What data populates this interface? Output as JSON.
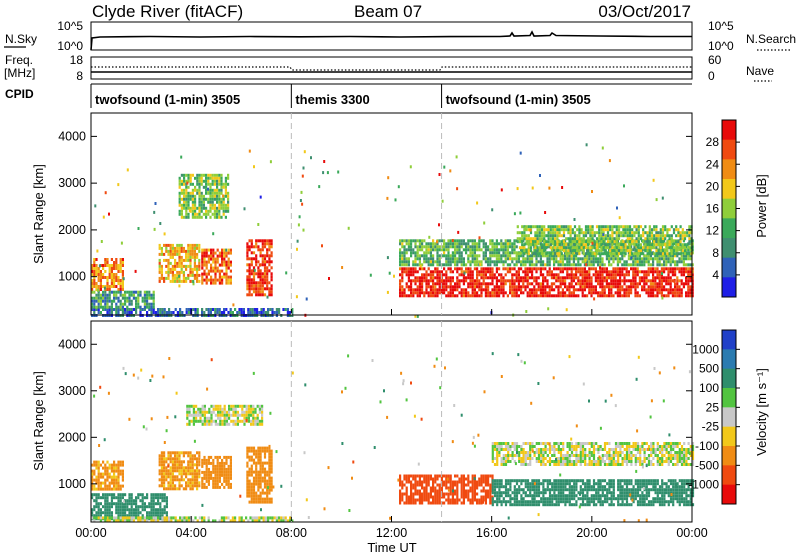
{
  "header": {
    "station": "Clyde River (fitACF)",
    "beam": "Beam 07",
    "date": "03/Oct/2017"
  },
  "top_panels": {
    "noise_left_label": "N.Sky",
    "noise_right_label": "N.Search",
    "noise_ticks_left": [
      "10^5",
      "10^0"
    ],
    "noise_ticks_right": [
      "10^5",
      "10^0"
    ],
    "freq_left_label": "Freq.",
    "freq_unit": "[MHz]",
    "freq_ticks": [
      "18",
      "8"
    ],
    "nave_ticks": [
      "60",
      "0"
    ],
    "nave_label": "Nave",
    "cpid_label": "CPID",
    "schedule": [
      {
        "name": "twofsound (1-min) 3505",
        "start_h": 0,
        "end_h": 8
      },
      {
        "name": "themis 3300",
        "start_h": 8,
        "end_h": 14
      },
      {
        "name": "twofsound (1-min) 3505",
        "start_h": 14,
        "end_h": 24
      }
    ]
  },
  "colors": {
    "power_scale": [
      "#1f1fe6",
      "#2f62b8",
      "#3f8f70",
      "#3aa95a",
      "#8fce3a",
      "#f2c81a",
      "#f08c14",
      "#f04a10",
      "#e80a0a"
    ],
    "velocity_scale": [
      "#2040c8",
      "#2b7bb0",
      "#2f8e6c",
      "#52c440",
      "#c8c8c8",
      "#f2c81a",
      "#f08c14",
      "#f04a10",
      "#e80a0a"
    ],
    "noise_line": "#000000",
    "dashed_divider": "#bbbbbb"
  },
  "chart_data": [
    {
      "type": "heatmap",
      "name": "power",
      "title": "",
      "xlabel": "Time UT",
      "ylabel": "Slant Range [km]",
      "xlim": [
        0,
        24
      ],
      "ylim": [
        180,
        4500
      ],
      "x_ticks": [
        "00:00",
        "04:00",
        "08:00",
        "12:00",
        "16:00",
        "20:00",
        "00:00"
      ],
      "y_ticks": [
        1000,
        2000,
        3000,
        4000
      ],
      "colorbar": {
        "label": "Power [dB]",
        "ticks": [
          4,
          8,
          12,
          16,
          20,
          24,
          28
        ],
        "range": [
          0,
          30
        ]
      },
      "regions": [
        {
          "t": [
            0.0,
            8.0
          ],
          "range_km": [
            180,
            330
          ],
          "value": 6
        },
        {
          "t": [
            0.0,
            1.3
          ],
          "range_km": [
            700,
            1400
          ],
          "value": 22
        },
        {
          "t": [
            0.0,
            2.5
          ],
          "range_km": [
            350,
            700
          ],
          "value": 10
        },
        {
          "t": [
            2.7,
            4.3
          ],
          "range_km": [
            900,
            1700
          ],
          "value": 20
        },
        {
          "t": [
            4.4,
            5.6
          ],
          "range_km": [
            850,
            1600
          ],
          "value": 24
        },
        {
          "t": [
            6.2,
            7.2
          ],
          "range_km": [
            600,
            1800
          ],
          "value": 26
        },
        {
          "t": [
            3.5,
            5.5
          ],
          "range_km": [
            2300,
            3200
          ],
          "value": 14
        },
        {
          "t": [
            12.3,
            24.0
          ],
          "range_km": [
            580,
            1200
          ],
          "value": 28
        },
        {
          "t": [
            12.3,
            24.0
          ],
          "range_km": [
            1250,
            1800
          ],
          "value": 12
        },
        {
          "t": [
            17.0,
            24.0
          ],
          "range_km": [
            1500,
            2100
          ],
          "value": 14
        }
      ]
    },
    {
      "type": "heatmap",
      "name": "velocity",
      "title": "",
      "xlabel": "Time UT",
      "ylabel": "Slant Range [km]",
      "xlim": [
        0,
        24
      ],
      "ylim": [
        180,
        4500
      ],
      "x_ticks": [
        "00:00",
        "04:00",
        "08:00",
        "12:00",
        "16:00",
        "20:00",
        "00:00"
      ],
      "y_ticks": [
        1000,
        2000,
        3000,
        4000
      ],
      "colorbar": {
        "label": "Velocity [m s⁻¹]",
        "ticks": [
          1000,
          500,
          100,
          25,
          -25,
          -100,
          -500,
          -1000
        ]
      },
      "regions": [
        {
          "t": [
            0.0,
            3.0
          ],
          "range_km": [
            250,
            800
          ],
          "value": 300
        },
        {
          "t": [
            0.0,
            1.3
          ],
          "range_km": [
            900,
            1500
          ],
          "value": -150
        },
        {
          "t": [
            2.7,
            4.3
          ],
          "range_km": [
            900,
            1700
          ],
          "value": -150
        },
        {
          "t": [
            4.4,
            5.6
          ],
          "range_km": [
            900,
            1600
          ],
          "value": -300
        },
        {
          "t": [
            6.2,
            7.2
          ],
          "range_km": [
            600,
            1800
          ],
          "value": -300
        },
        {
          "t": [
            3.8,
            6.8
          ],
          "range_km": [
            2300,
            2700
          ],
          "value": 0
        },
        {
          "t": [
            12.3,
            16.0
          ],
          "range_km": [
            600,
            1200
          ],
          "value": -700
        },
        {
          "t": [
            16.0,
            24.0
          ],
          "range_km": [
            550,
            1100
          ],
          "value": 300
        },
        {
          "t": [
            16.0,
            24.0
          ],
          "range_km": [
            1400,
            1900
          ],
          "value": 0
        },
        {
          "t": [
            0.0,
            8.0
          ],
          "range_km": [
            180,
            300
          ],
          "value": 0
        }
      ]
    }
  ]
}
